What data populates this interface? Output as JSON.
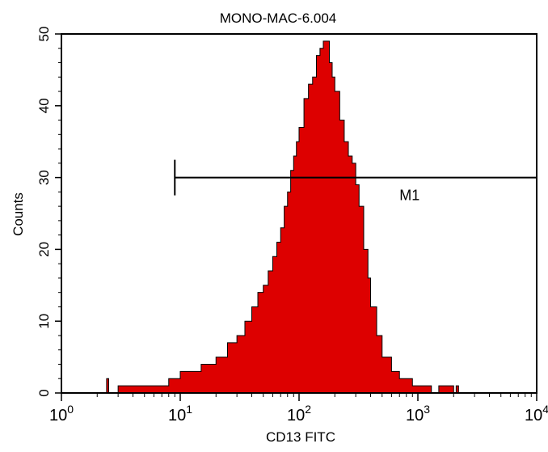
{
  "chart_data": {
    "type": "area",
    "title": "MONO-MAC-6.004",
    "xlabel": "CD13 FITC",
    "ylabel": "Counts",
    "x_scale": "log",
    "xlim": [
      1,
      10000
    ],
    "ylim": [
      0,
      50
    ],
    "fill_color": "#dd0000",
    "outline_color": "#000000",
    "grid": false,
    "x_ticks": [
      {
        "base": "10",
        "exp": "0"
      },
      {
        "base": "10",
        "exp": "1"
      },
      {
        "base": "10",
        "exp": "2"
      },
      {
        "base": "10",
        "exp": "3"
      },
      {
        "base": "10",
        "exp": "4"
      }
    ],
    "y_ticks": [
      "0",
      "10",
      "20",
      "30",
      "40",
      "50"
    ],
    "marker": {
      "label": "M1",
      "x_start": 9,
      "x_end": 10000,
      "y": 30
    },
    "x": [
      1,
      2,
      2.3,
      2.4,
      2.5,
      3,
      4,
      5,
      6,
      7,
      8,
      9,
      10,
      12,
      15,
      20,
      25,
      30,
      35,
      40,
      45,
      50,
      55,
      60,
      65,
      70,
      75,
      80,
      85,
      90,
      95,
      100,
      110,
      120,
      130,
      140,
      150,
      160,
      170,
      180,
      190,
      200,
      220,
      240,
      260,
      280,
      300,
      320,
      350,
      380,
      400,
      450,
      500,
      600,
      700,
      800,
      900,
      1000,
      1100,
      1300,
      1500,
      2000,
      2100,
      2200,
      2500,
      10000
    ],
    "y": [
      0,
      0,
      0,
      2,
      0,
      1,
      1,
      1,
      1,
      1,
      2,
      2,
      3,
      3,
      4,
      5,
      7,
      8,
      10,
      12,
      14,
      15,
      17,
      19,
      21,
      23,
      26,
      28,
      31,
      33,
      35,
      37,
      41,
      43,
      44,
      47,
      48,
      49,
      49,
      46,
      44,
      42,
      38,
      35,
      33,
      32,
      29,
      26,
      20,
      16,
      12,
      8,
      5,
      3,
      2,
      2,
      1,
      1,
      1,
      0,
      1,
      0,
      1,
      0,
      0,
      0
    ]
  }
}
